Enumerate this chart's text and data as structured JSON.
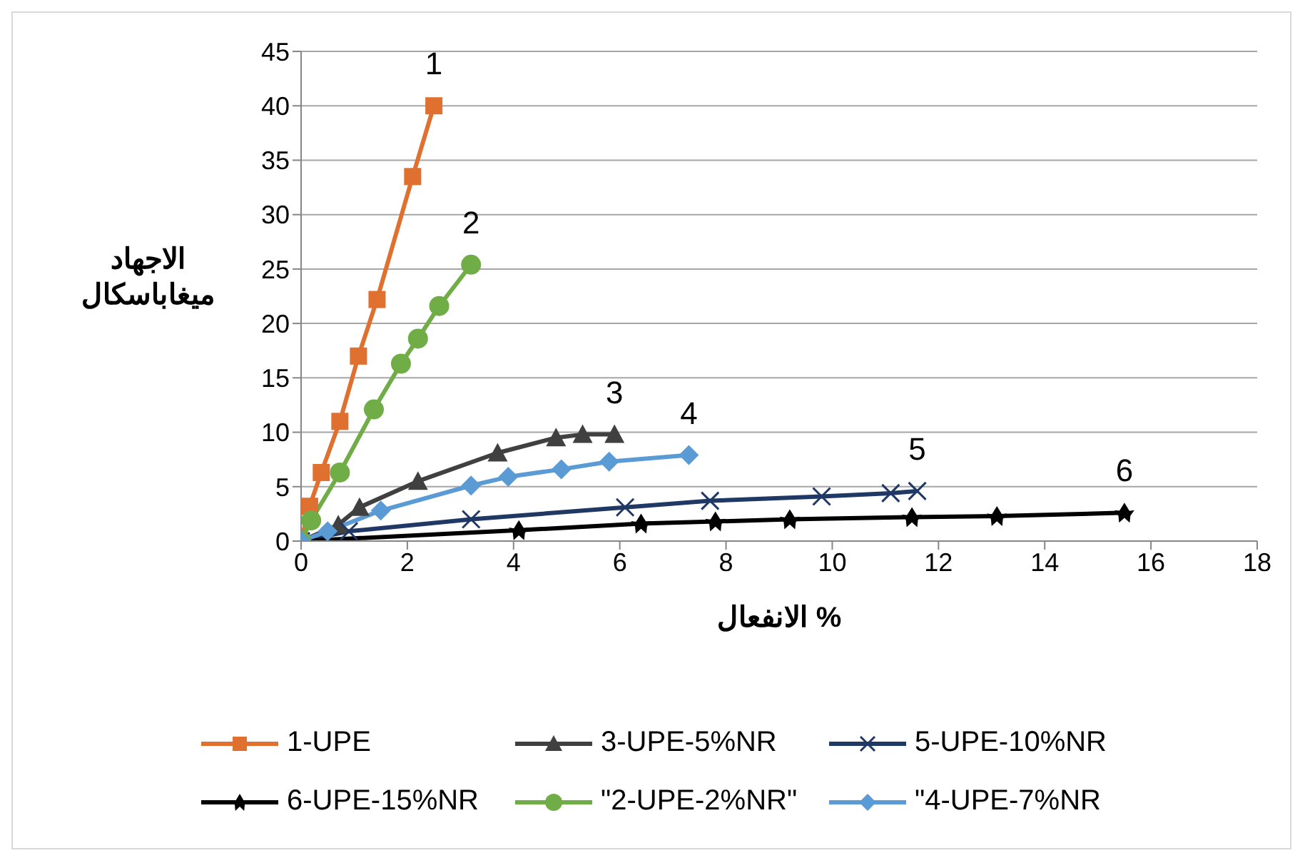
{
  "chart_data": {
    "type": "line",
    "xlabel": "الانفعال %",
    "ylabel": "الاجهاد ميغاباسكال",
    "xlim": [
      0,
      18
    ],
    "xticks": [
      0,
      2,
      4,
      6,
      8,
      10,
      12,
      14,
      16,
      18
    ],
    "ylim": [
      0,
      45
    ],
    "yticks": [
      0,
      5,
      10,
      15,
      20,
      25,
      30,
      35,
      40,
      45
    ],
    "grid": "y",
    "legend": "bottom",
    "line_style": "solid",
    "annotations": [
      {
        "text": "1",
        "x": 2.5,
        "y": 40
      },
      {
        "text": "2",
        "x": 3.2,
        "y": 25.4
      },
      {
        "text": "3",
        "x": 5.9,
        "y": 9.8
      },
      {
        "text": "4",
        "x": 7.3,
        "y": 7.9
      },
      {
        "text": "5",
        "x": 11.6,
        "y": 4.6
      },
      {
        "text": "6",
        "x": 15.5,
        "y": 2.6
      }
    ],
    "series": [
      {
        "name": "1-UPE",
        "color": "#e07030",
        "marker": "square",
        "x": [
          0,
          0.16,
          0.38,
          0.73,
          1.08,
          1.43,
          2.1,
          2.5
        ],
        "values": [
          0,
          3.2,
          6.3,
          11,
          17,
          22.2,
          33.5,
          40
        ]
      },
      {
        "name": "3-UPE-5%NR",
        "color": "#404040",
        "marker": "triangle",
        "x": [
          0,
          0.7,
          1.1,
          2.2,
          3.7,
          4.8,
          5.3,
          5.9
        ],
        "values": [
          0,
          1.5,
          3.1,
          5.5,
          8.1,
          9.5,
          9.8,
          9.8
        ]
      },
      {
        "name": "5-UPE-10%NR",
        "color": "#1f3864",
        "marker": "cross",
        "x": [
          0,
          0.9,
          3.2,
          6.1,
          7.7,
          9.8,
          11.1,
          11.6
        ],
        "values": [
          0,
          0.9,
          2,
          3.1,
          3.7,
          4.1,
          4.4,
          4.6
        ]
      },
      {
        "name": "6-UPE-15%NR",
        "color": "#000000",
        "marker": "star",
        "x": [
          0,
          4.1,
          6.4,
          7.8,
          9.2,
          11.5,
          13.1,
          15.5
        ],
        "values": [
          0,
          1,
          1.6,
          1.8,
          2,
          2.2,
          2.3,
          2.6
        ]
      },
      {
        "name": "\"2-UPE-2%NR\"",
        "color": "#70ad47",
        "marker": "circle",
        "x": [
          0,
          0.19,
          0.73,
          1.37,
          1.88,
          2.2,
          2.6,
          3.2
        ],
        "values": [
          0,
          1.9,
          6.3,
          12.1,
          16.3,
          18.6,
          21.6,
          25.4
        ]
      },
      {
        "name": "\"4-UPE-7%NR",
        "color": "#5b9bd5",
        "marker": "diamond",
        "x": [
          0,
          0.5,
          1.5,
          3.2,
          3.9,
          4.9,
          5.8,
          7.3
        ],
        "values": [
          0,
          0.9,
          2.8,
          5.1,
          5.9,
          6.6,
          7.3,
          7.9
        ]
      }
    ]
  }
}
